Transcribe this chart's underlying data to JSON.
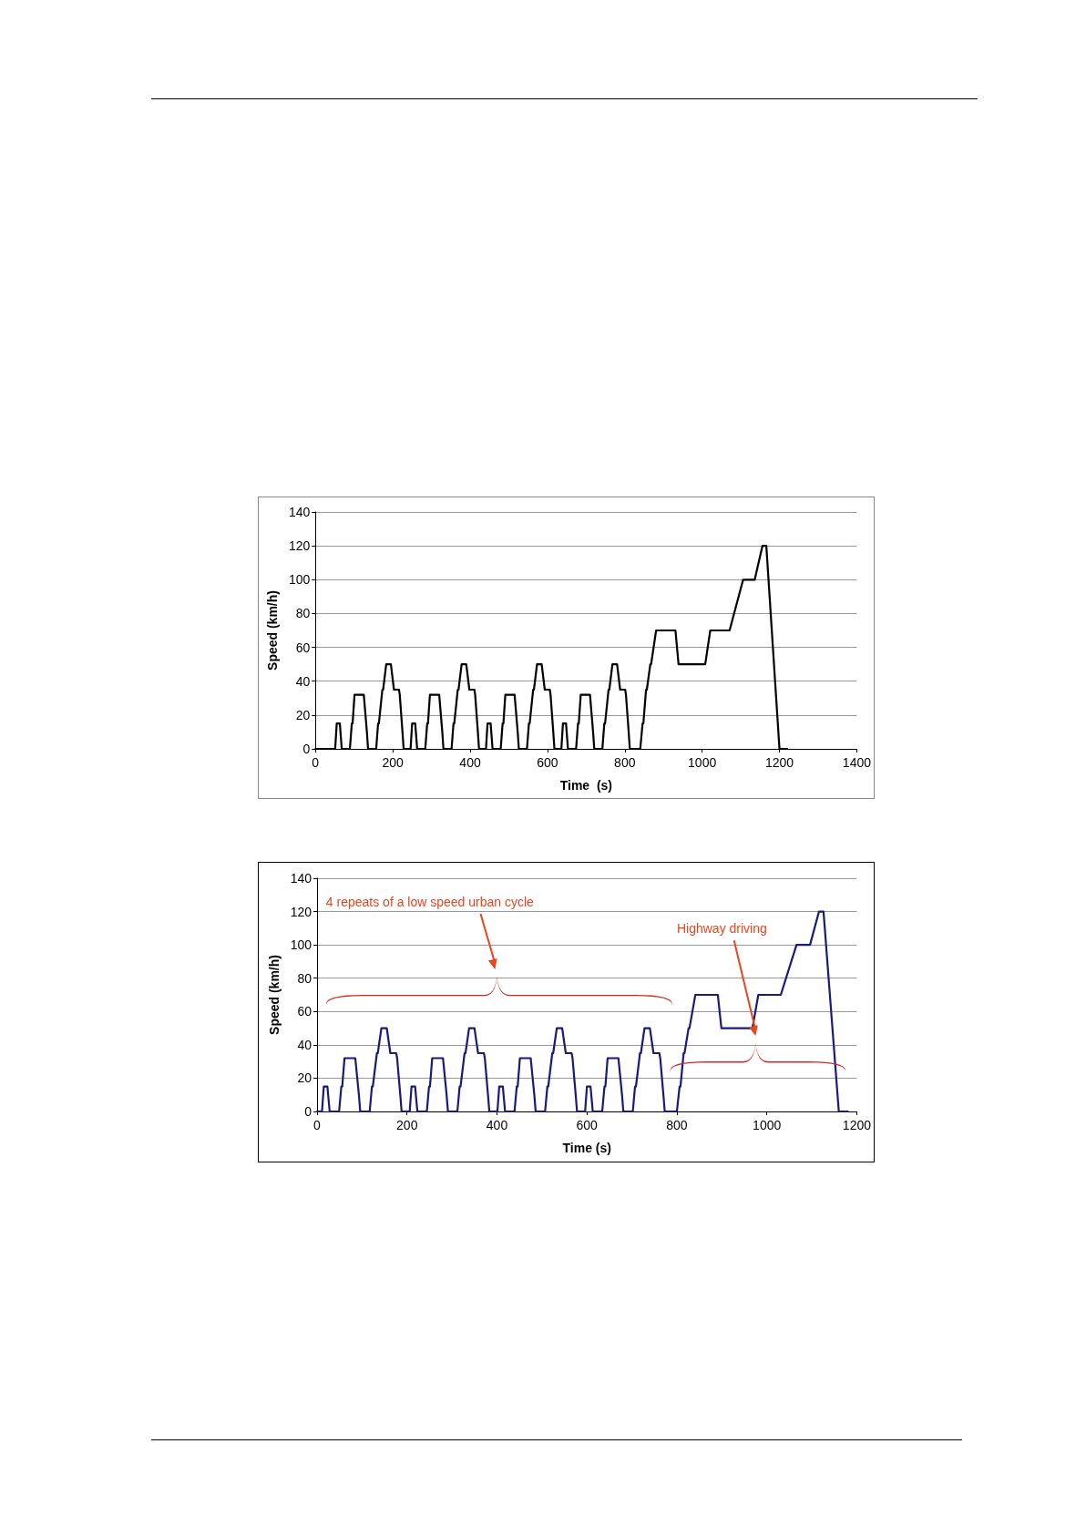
{
  "chart_data": [
    {
      "type": "line",
      "xlabel": "Time  (s)",
      "ylabel": "Speed (km/h)",
      "xlim": [
        0,
        1400
      ],
      "xticks": [
        0,
        200,
        400,
        600,
        800,
        1000,
        1200,
        1400
      ],
      "ylim": [
        0,
        140
      ],
      "yticks": [
        0,
        20,
        40,
        60,
        80,
        100,
        120,
        140
      ],
      "grid": "y",
      "marker": "none",
      "line_style": "solid",
      "series": [
        {
          "color": "#000000",
          "x": [
            0,
            40,
            51,
            55,
            63,
            68,
            89,
            94,
            96,
            101,
            125,
            133,
            136,
            157,
            162,
            164,
            173,
            175,
            183,
            195,
            203,
            216,
            218,
            225,
            228,
            235,
            246,
            250,
            258,
            263,
            284,
            289,
            291,
            296,
            320,
            328,
            331,
            352,
            357,
            359,
            368,
            370,
            378,
            390,
            398,
            411,
            413,
            420,
            423,
            430,
            441,
            445,
            453,
            458,
            479,
            484,
            486,
            491,
            515,
            523,
            526,
            547,
            552,
            554,
            563,
            565,
            573,
            585,
            593,
            606,
            608,
            615,
            618,
            625,
            636,
            640,
            648,
            653,
            674,
            679,
            681,
            686,
            710,
            718,
            721,
            742,
            747,
            749,
            758,
            760,
            768,
            780,
            788,
            801,
            803,
            810,
            813,
            820,
            840,
            846,
            848,
            855,
            857,
            866,
            868,
            881,
            931,
            939,
            1008,
            1021,
            1071,
            1106,
            1136,
            1156,
            1166,
            1200,
            1220
          ],
          "values": [
            0,
            0,
            0,
            15,
            15,
            0,
            0,
            15,
            15,
            32,
            32,
            10,
            0,
            0,
            15,
            15,
            35,
            35,
            50,
            50,
            35,
            35,
            32,
            10,
            0,
            0,
            0,
            15,
            15,
            0,
            0,
            15,
            15,
            32,
            32,
            10,
            0,
            0,
            15,
            15,
            35,
            35,
            50,
            50,
            35,
            35,
            32,
            10,
            0,
            0,
            0,
            15,
            15,
            0,
            0,
            15,
            15,
            32,
            32,
            10,
            0,
            0,
            15,
            15,
            35,
            35,
            50,
            50,
            35,
            35,
            32,
            10,
            0,
            0,
            0,
            15,
            15,
            0,
            0,
            15,
            15,
            32,
            32,
            10,
            0,
            0,
            15,
            15,
            35,
            35,
            50,
            50,
            35,
            35,
            32,
            10,
            0,
            0,
            0,
            15,
            15,
            35,
            35,
            50,
            50,
            70,
            70,
            50,
            50,
            70,
            70,
            100,
            100,
            120,
            120,
            0,
            0
          ]
        }
      ]
    },
    {
      "type": "line",
      "xlabel": "Time (s)",
      "ylabel": "Speed (km/h)",
      "xlim": [
        0,
        1200
      ],
      "xticks": [
        0,
        200,
        400,
        600,
        800,
        1000,
        1200
      ],
      "ylim": [
        0,
        140
      ],
      "yticks": [
        0,
        20,
        40,
        60,
        80,
        100,
        120,
        140
      ],
      "grid": "y",
      "marker": "none",
      "line_style": "solid",
      "annotations": [
        "4 repeats of a low  speed urban cycle",
        {
          "text": "Highway driving",
          "x": 968,
          "y": 50
        }
      ],
      "series": [
        {
          "color": "#1a1a7a",
          "x": [
            0,
            11,
            15,
            23,
            28,
            49,
            54,
            56,
            61,
            85,
            93,
            96,
            117,
            122,
            124,
            133,
            135,
            143,
            155,
            163,
            176,
            178,
            185,
            188,
            195,
            206,
            210,
            218,
            223,
            244,
            249,
            251,
            256,
            280,
            288,
            291,
            312,
            317,
            319,
            328,
            330,
            338,
            350,
            358,
            371,
            373,
            380,
            383,
            390,
            401,
            405,
            413,
            418,
            439,
            444,
            446,
            451,
            475,
            483,
            486,
            507,
            512,
            514,
            523,
            525,
            533,
            545,
            553,
            566,
            568,
            575,
            578,
            585,
            596,
            600,
            608,
            613,
            634,
            639,
            641,
            646,
            670,
            678,
            681,
            702,
            707,
            709,
            718,
            720,
            728,
            740,
            748,
            761,
            763,
            770,
            773,
            780,
            800,
            806,
            808,
            815,
            817,
            826,
            828,
            841,
            891,
            899,
            968,
            981,
            1031,
            1066,
            1096,
            1116,
            1126,
            1160,
            1180
          ],
          "values": [
            0,
            0,
            15,
            15,
            0,
            0,
            15,
            15,
            32,
            32,
            10,
            0,
            0,
            15,
            15,
            35,
            35,
            50,
            50,
            35,
            35,
            32,
            10,
            0,
            0,
            0,
            15,
            15,
            0,
            0,
            15,
            15,
            32,
            32,
            10,
            0,
            0,
            15,
            15,
            35,
            35,
            50,
            50,
            35,
            35,
            32,
            10,
            0,
            0,
            0,
            15,
            15,
            0,
            0,
            15,
            15,
            32,
            32,
            10,
            0,
            0,
            15,
            15,
            35,
            35,
            50,
            50,
            35,
            35,
            32,
            10,
            0,
            0,
            0,
            15,
            15,
            0,
            0,
            15,
            15,
            32,
            32,
            10,
            0,
            0,
            15,
            15,
            35,
            35,
            50,
            50,
            35,
            35,
            32,
            10,
            0,
            0,
            0,
            15,
            15,
            35,
            35,
            50,
            50,
            70,
            70,
            50,
            50,
            70,
            70,
            100,
            100,
            120,
            120,
            0,
            0
          ]
        }
      ]
    }
  ]
}
